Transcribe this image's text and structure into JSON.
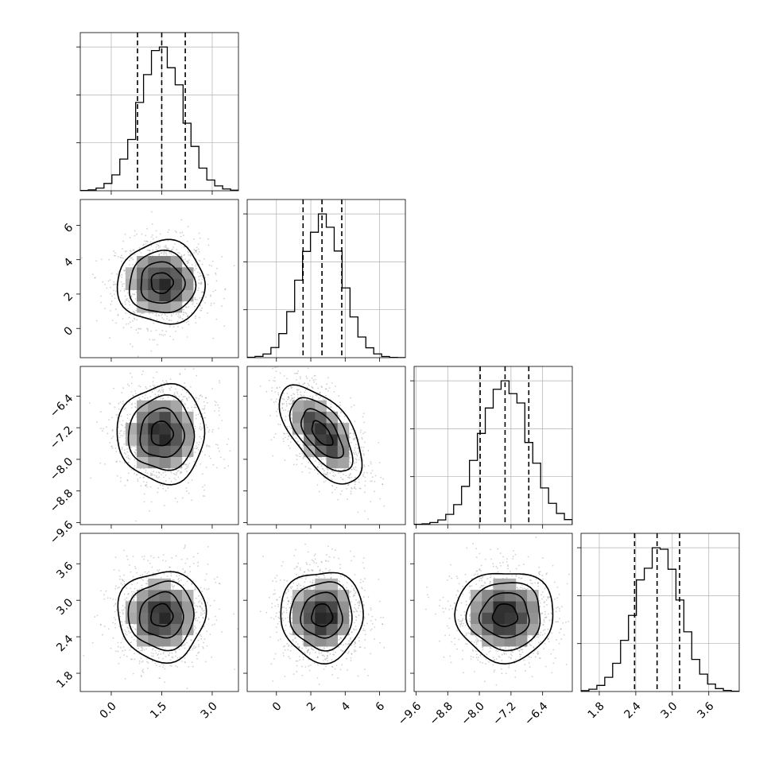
{
  "chart_data": {
    "type": "corner",
    "n_params": 4,
    "grid": true,
    "params": [
      {
        "name": "",
        "mean": 1.5,
        "std": 0.65,
        "range": [
          -0.92,
          3.78
        ],
        "quantiles": [
          0.78,
          1.5,
          2.2
        ],
        "ticks": [
          0.0,
          1.5,
          3.0
        ],
        "tick_labels": [
          "0.0",
          "1.5",
          "3.0"
        ]
      },
      {
        "name": "",
        "mean": 2.65,
        "std": 1.2,
        "range": [
          -1.7,
          7.5
        ],
        "quantiles": [
          1.55,
          2.65,
          3.8
        ],
        "ticks": [
          0,
          2,
          4,
          6
        ],
        "tick_labels": [
          "0",
          "2",
          "4",
          "6"
        ]
      },
      {
        "name": "",
        "mean": -7.35,
        "std": 0.62,
        "range": [
          -9.65,
          -5.65
        ],
        "quantiles": [
          -7.98,
          -7.35,
          -6.75
        ],
        "ticks": [
          -9.6,
          -8.8,
          -8.0,
          -7.2,
          -6.4
        ],
        "tick_labels": [
          "−9.6",
          "−8.8",
          "−8.0",
          "−7.2",
          "−6.4"
        ]
      },
      {
        "name": "",
        "mean": 2.75,
        "std": 0.37,
        "range": [
          1.5,
          4.1
        ],
        "quantiles": [
          2.38,
          2.75,
          3.12
        ],
        "ticks": [
          1.8,
          2.4,
          3.0,
          3.6
        ],
        "tick_labels": [
          "1.8",
          "2.4",
          "3.0",
          "3.6"
        ]
      }
    ],
    "correlations": [
      [
        1.0,
        0.0,
        0.0,
        0.0
      ],
      [
        0.0,
        1.0,
        -0.6,
        0.0
      ],
      [
        0.0,
        -0.6,
        1.0,
        0.0
      ],
      [
        0.0,
        0.0,
        0.0,
        1.0
      ]
    ],
    "contour_levels_sigma": [
      0.5,
      1.0,
      1.5,
      2.0
    ]
  }
}
